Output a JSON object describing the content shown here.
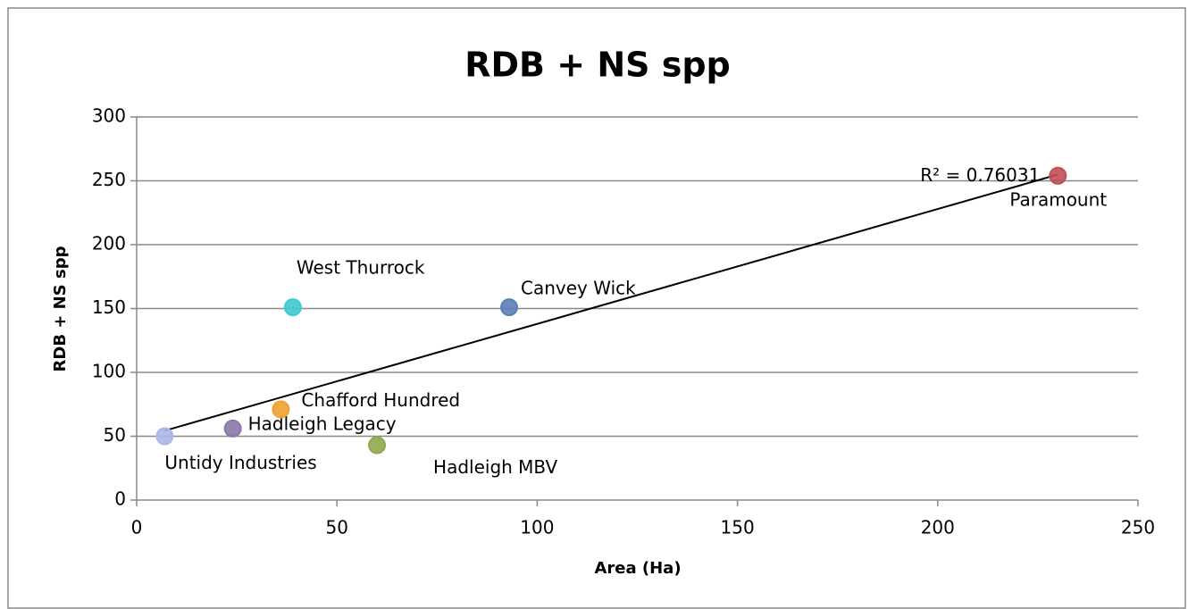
{
  "chart_data": {
    "type": "scatter",
    "title": "RDB + NS spp",
    "x_label": "Area (Ha)",
    "y_label": "RDB + NS spp",
    "annotation": "R² = 0.76031",
    "trendline": true,
    "grid": true,
    "xlim": [
      0,
      250
    ],
    "xticks": [
      0,
      50,
      100,
      150,
      200,
      250
    ],
    "ylim": [
      0,
      300
    ],
    "yticks": [
      0,
      50,
      100,
      150,
      200,
      250,
      300
    ],
    "series": [
      {
        "name": "Untidy Industries",
        "color": "#a9b8e8",
        "x": [
          7
        ],
        "values": [
          50
        ]
      },
      {
        "name": "Hadleigh Legacy",
        "color": "#8b78a8",
        "x": [
          24
        ],
        "values": [
          56
        ]
      },
      {
        "name": "Chafford Hundred",
        "color": "#f0a030",
        "x": [
          36
        ],
        "values": [
          71
        ]
      },
      {
        "name": "West Thurrock",
        "color": "#40c8d0",
        "x": [
          39
        ],
        "values": [
          151
        ]
      },
      {
        "name": "Hadleigh MBV",
        "color": "#90a850",
        "x": [
          60
        ],
        "values": [
          43
        ]
      },
      {
        "name": "Canvey Wick",
        "color": "#5a80b8",
        "x": [
          93
        ],
        "values": [
          151
        ]
      },
      {
        "name": "Paramount",
        "color": "#c0505a",
        "x": [
          230
        ],
        "values": [
          254
        ]
      }
    ]
  }
}
